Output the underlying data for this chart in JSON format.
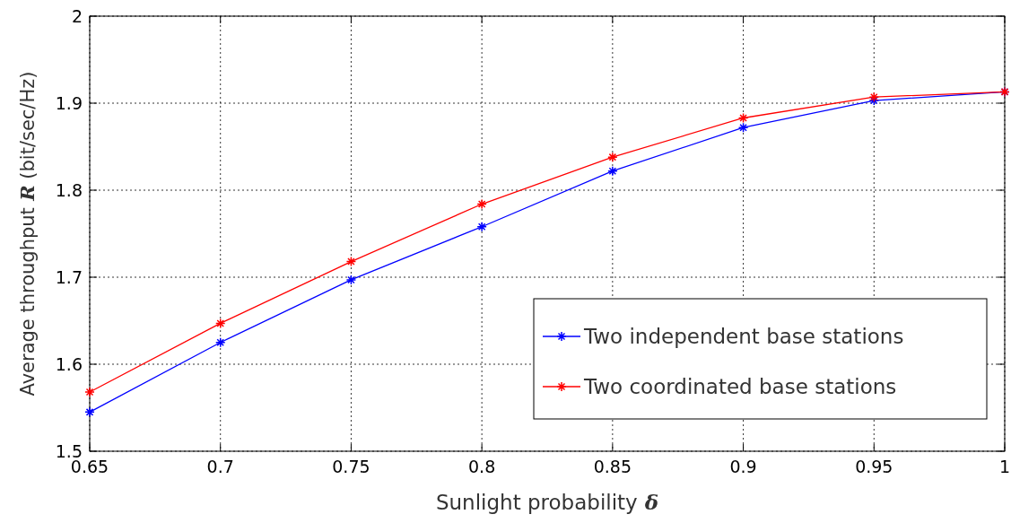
{
  "chart_data": {
    "type": "line",
    "xlabel": "Sunlight probability δ",
    "ylabel": "Average throughput R (bit/sec/Hz)",
    "x": [
      0.65,
      0.7,
      0.75,
      0.8,
      0.85,
      0.9,
      0.95,
      1
    ],
    "series": [
      {
        "name": "Two independent base stations",
        "color": "#0000ff",
        "values": [
          1.545,
          1.625,
          1.697,
          1.758,
          1.822,
          1.872,
          1.903,
          1.913
        ]
      },
      {
        "name": "Two coordinated base stations",
        "color": "#ff0000",
        "values": [
          1.568,
          1.647,
          1.718,
          1.784,
          1.838,
          1.883,
          1.907,
          1.913
        ]
      }
    ],
    "xlim": [
      0.65,
      1
    ],
    "xticks": [
      0.65,
      0.7,
      0.75,
      0.8,
      0.85,
      0.9,
      0.95,
      1
    ],
    "ylim": [
      1.5,
      2
    ],
    "yticks": [
      1.5,
      1.6,
      1.7,
      1.8,
      1.9,
      2
    ],
    "grid": true,
    "legend": "bottom right",
    "marker": "cross",
    "line_style": "solid"
  }
}
